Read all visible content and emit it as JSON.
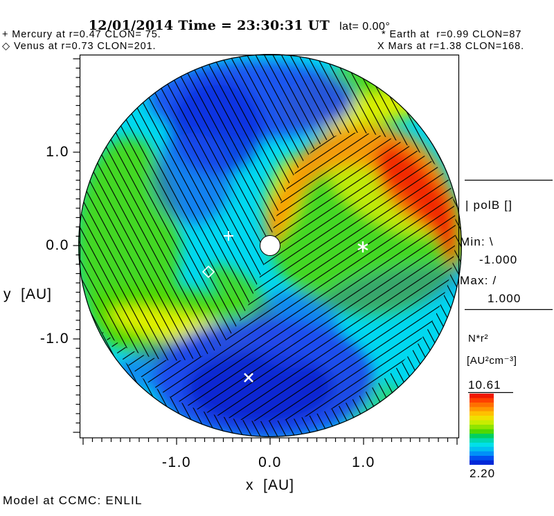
{
  "title": {
    "datetime": "12/01/2014 Time = 23:30:31 UT",
    "lat": "lat= 0.00°"
  },
  "annotations": {
    "mercury": "+ Mercury at r=0.47 CLON= 75.",
    "venus": "◇ Venus at r=0.73 CLON=201.",
    "earth": "* Earth at  r=0.99 CLON=87",
    "mars": "X Mars at r=1.38 CLON=168."
  },
  "axes": {
    "x_label": "x  [AU]",
    "y_label": "y  [AU]",
    "x_ticks": [
      "-1.0",
      "0.0",
      "1.0"
    ],
    "y_ticks": [
      "1.0",
      "0.0",
      "-1.0"
    ]
  },
  "legend_polb": {
    "title": "| polB []",
    "min_label": "Min: \\",
    "min_value": "-1.000",
    "max_label": "Max: /",
    "max_value": "1.000"
  },
  "colorbar": {
    "quantity": "N*r²",
    "units": "[AU²cm⁻³]",
    "max": "10.61",
    "min": "2.20",
    "colors": [
      "#f01800",
      "#ff4000",
      "#ff7000",
      "#ff9800",
      "#ffc000",
      "#f0e000",
      "#c8ec00",
      "#90e400",
      "#50d800",
      "#00d060",
      "#00d8b0",
      "#00e0e8",
      "#00c0f0",
      "#0090f8",
      "#0050f0",
      "#0028d8"
    ]
  },
  "footer": {
    "model": "Model at CCMC: ENLIL"
  },
  "chart_data": {
    "type": "heatmap",
    "title": "12/01/2014 Time = 23:30:31 UT lat= 0.00°",
    "xlabel": "x [AU]",
    "ylabel": "y [AU]",
    "xlim": [
      -2.05,
      2.05
    ],
    "ylim": [
      -2.05,
      2.05
    ],
    "x_ticks": [
      -1.0,
      0.0,
      1.0
    ],
    "y_ticks": [
      1.0,
      0.0,
      -1.0
    ],
    "quantity": "N*r² [AU²cm⁻³]",
    "colorbar_min": 2.2,
    "colorbar_max": 10.61,
    "overlay_field": "polB [], Min -1.000 shown as \\ hatching, Max 1.000 shown as / hatching",
    "planets": [
      {
        "name": "Mercury",
        "marker": "+",
        "r": 0.47,
        "clon": 75
      },
      {
        "name": "Venus",
        "marker": "◇",
        "r": 0.73,
        "clon": 201
      },
      {
        "name": "Earth",
        "marker": "*",
        "r": 0.99,
        "clon": 87
      },
      {
        "name": "Mars",
        "marker": "X",
        "r": 1.38,
        "clon": 168
      }
    ],
    "model": "ENLIL at CCMC",
    "notes": "Ecliptic-plane cut: high-density Parker-spiral arm (red/orange) sweeping from Sun to upper-right rim; yellow-green arm to lower-left; low-density blue regions at top-left and bottom-center; white Sun disk at origin."
  }
}
